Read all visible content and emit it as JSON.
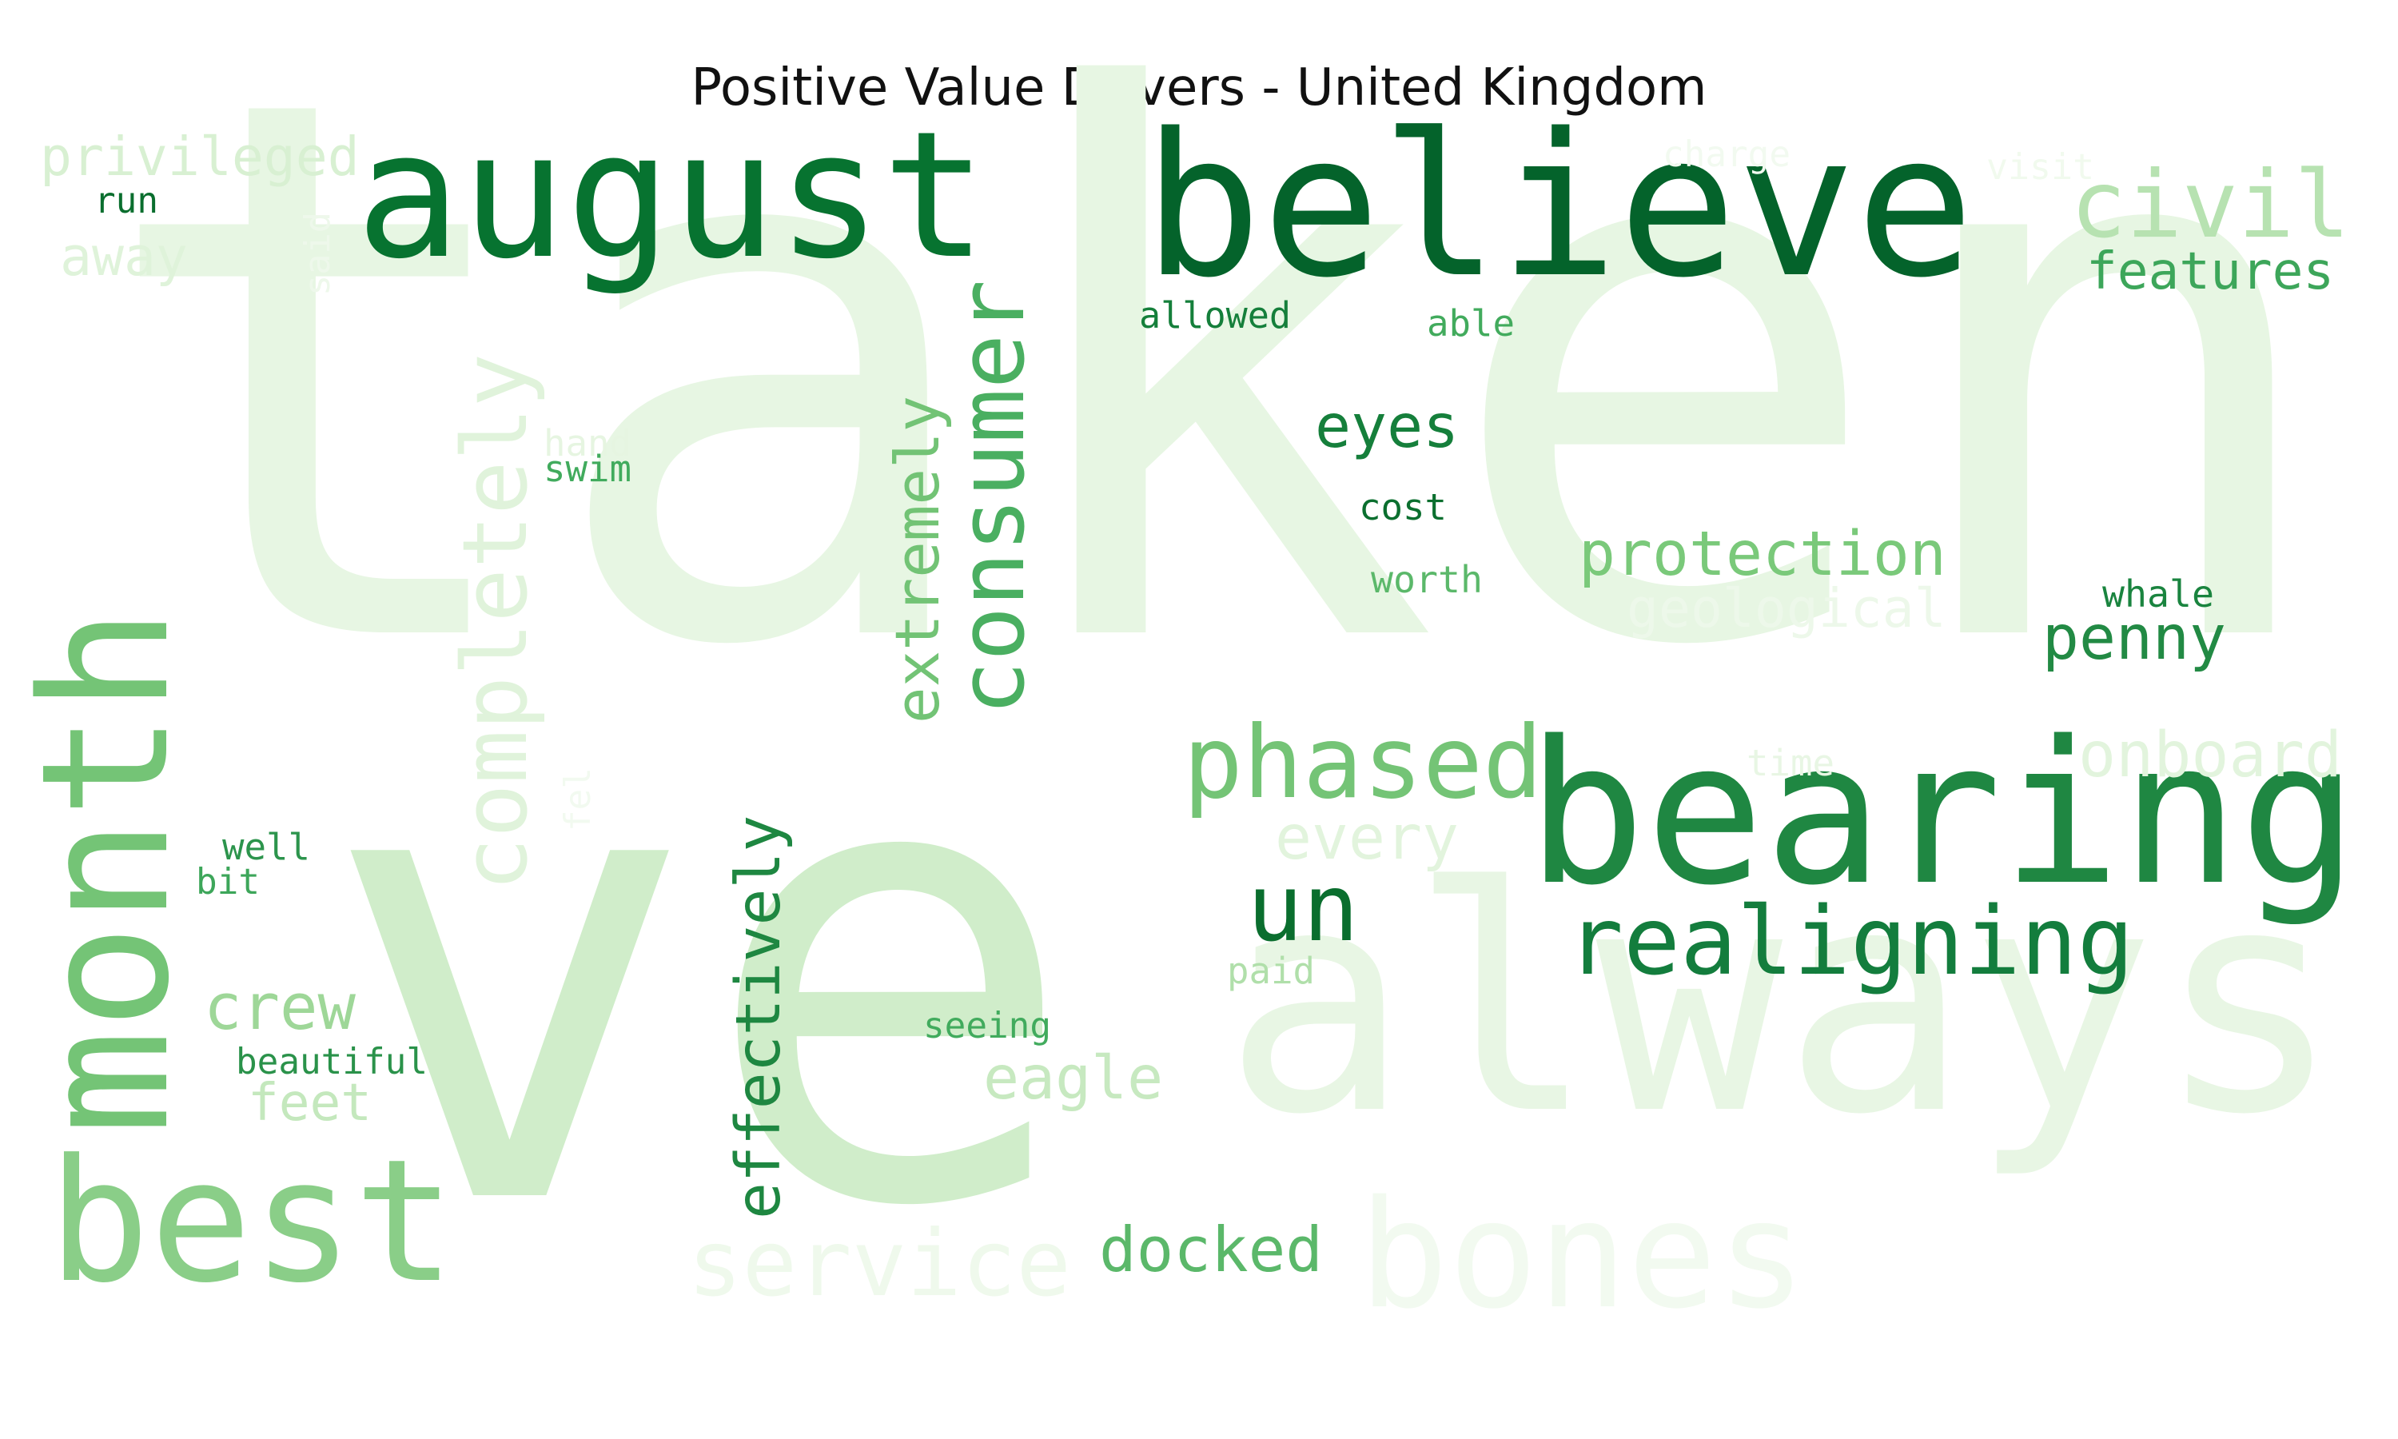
{
  "chart_data": {
    "type": "wordcloud",
    "title": "Positive Value Drivers - United Kingdom",
    "colormap": "Greens",
    "words": [
      {
        "text": "taken",
        "color": "#e7f6e3"
      },
      {
        "text": "ve",
        "color": "#d0edca"
      },
      {
        "text": "always",
        "color": "#e8f6e4"
      },
      {
        "text": "bearing",
        "color": "#1f8742"
      },
      {
        "text": "believe",
        "color": "#04632b"
      },
      {
        "text": "august",
        "color": "#077330"
      },
      {
        "text": "month",
        "color": "#74c476"
      },
      {
        "text": "best",
        "color": "#8ace88"
      },
      {
        "text": "bones",
        "color": "#f2faf0"
      },
      {
        "text": "service",
        "color": "#eff9ec"
      },
      {
        "text": "realigning",
        "color": "#137d3d"
      },
      {
        "text": "phased",
        "color": "#74c476"
      },
      {
        "text": "consumer",
        "color": "#4aaf61"
      },
      {
        "text": "completely",
        "color": "#e0f3db"
      },
      {
        "text": "civil",
        "color": "#b7e2b1"
      },
      {
        "text": "features",
        "color": "#3da65a"
      },
      {
        "text": "privileged",
        "color": "#d8f0d2"
      },
      {
        "text": "onboard",
        "color": "#e2f4dd"
      },
      {
        "text": "effectively",
        "color": "#1e8741"
      },
      {
        "text": "un",
        "color": "#0a6e2e"
      },
      {
        "text": "protection",
        "color": "#7ac97a"
      },
      {
        "text": "eyes",
        "color": "#157f3b"
      },
      {
        "text": "penny",
        "color": "#228a44"
      },
      {
        "text": "extremely",
        "color": "#72c375"
      },
      {
        "text": "docked",
        "color": "#5bb86a"
      },
      {
        "text": "eagle",
        "color": "#c7e9c0"
      },
      {
        "text": "every",
        "color": "#e2f4dd"
      },
      {
        "text": "crew",
        "color": "#9ed798"
      },
      {
        "text": "feet",
        "color": "#c4e8bd"
      },
      {
        "text": "geological",
        "color": "#edf8ea"
      },
      {
        "text": "away",
        "color": "#dff3da"
      },
      {
        "text": "allowed",
        "color": "#157f3b"
      },
      {
        "text": "able",
        "color": "#42ab5d"
      },
      {
        "text": "cost",
        "color": "#0b6f2f"
      },
      {
        "text": "worth",
        "color": "#5bb86a"
      },
      {
        "text": "whale",
        "color": "#1a843f"
      },
      {
        "text": "hand",
        "color": "#e6f5e1"
      },
      {
        "text": "swim",
        "color": "#41ab5d"
      },
      {
        "text": "run",
        "color": "#0a6e2e"
      },
      {
        "text": "said",
        "color": "#eef8eb"
      },
      {
        "text": "charge",
        "color": "#f2faf0"
      },
      {
        "text": "visit",
        "color": "#f1faee"
      },
      {
        "text": "time",
        "color": "#e8f6e4"
      },
      {
        "text": "fel",
        "color": "#f2faf0"
      },
      {
        "text": "well",
        "color": "#2c944c"
      },
      {
        "text": "bit",
        "color": "#3da65a"
      },
      {
        "text": "beautiful",
        "color": "#2a924a"
      },
      {
        "text": "seeing",
        "color": "#41ab5d"
      },
      {
        "text": "paid",
        "color": "#b0dfaa"
      }
    ]
  }
}
